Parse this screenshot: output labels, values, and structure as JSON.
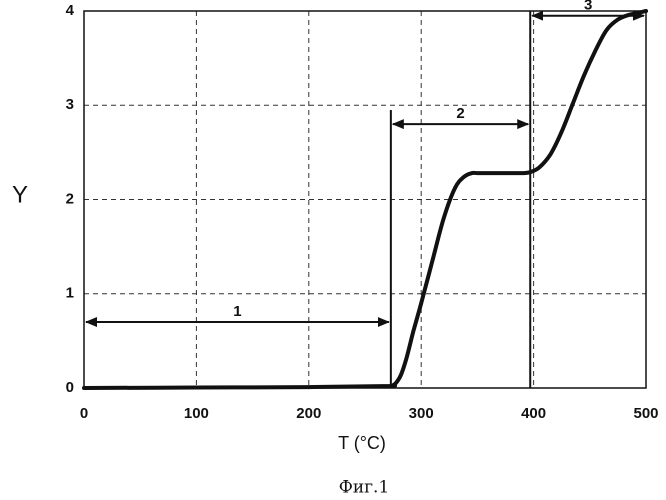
{
  "chart_data": {
    "type": "line",
    "title": "",
    "xlabel": "T (°C)",
    "ylabel": "Y",
    "xlim": [
      0,
      500
    ],
    "ylim": [
      0,
      4
    ],
    "xticks": [
      "0",
      "100",
      "200",
      "300",
      "400",
      "500"
    ],
    "yticks": [
      "0",
      "1",
      "2",
      "3",
      "4"
    ],
    "grid": "dashed",
    "series": [
      {
        "x": [
          0,
          100,
          200,
          270,
          275,
          278,
          282,
          287,
          293,
          300,
          310,
          320,
          330,
          338,
          345,
          350,
          360,
          375,
          390,
          397,
          405,
          415,
          425,
          435,
          445,
          455,
          465,
          475,
          485,
          493,
          500
        ],
        "y": [
          0,
          0.005,
          0.01,
          0.02,
          0.03,
          0.06,
          0.14,
          0.32,
          0.6,
          0.9,
          1.35,
          1.8,
          2.12,
          2.24,
          2.28,
          2.28,
          2.28,
          2.28,
          2.28,
          2.29,
          2.34,
          2.48,
          2.72,
          3.02,
          3.32,
          3.58,
          3.8,
          3.91,
          3.96,
          3.98,
          4.0
        ]
      }
    ],
    "annotations": [
      {
        "label": "1",
        "x_start": 0,
        "x_end": 273,
        "y": 0.7
      },
      {
        "label": "2",
        "x_start": 273,
        "x_end": 397,
        "y": 2.8
      },
      {
        "label": "3",
        "x_start": 397,
        "x_end": 500,
        "y": 3.95
      }
    ],
    "boundaries": [
      {
        "x": 273,
        "y_top": 2.95
      },
      {
        "x": 397,
        "y_top": 4.0
      }
    ],
    "caption": "Фиг.1"
  }
}
